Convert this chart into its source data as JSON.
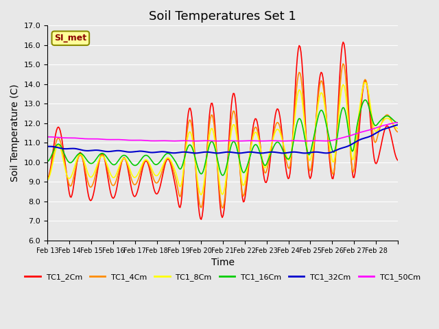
{
  "title": "Soil Temperatures Set 1",
  "xlabel": "Time",
  "ylabel": "Soil Temperature (C)",
  "ylim": [
    6.0,
    17.0
  ],
  "yticks": [
    6.0,
    7.0,
    8.0,
    9.0,
    10.0,
    11.0,
    12.0,
    13.0,
    14.0,
    15.0,
    16.0,
    17.0
  ],
  "bg_color": "#e8e8e8",
  "plot_bg_color": "#e8e8e8",
  "legend_label": "SI_met",
  "series_colors": {
    "TC1_2Cm": "#ff0000",
    "TC1_4Cm": "#ff8c00",
    "TC1_8Cm": "#ffff00",
    "TC1_16Cm": "#00cc00",
    "TC1_32Cm": "#0000cc",
    "TC1_50Cm": "#ff00ff"
  },
  "xtick_labels": [
    "Feb 13",
    "Feb 14",
    "Feb 15",
    "Feb 16",
    "Feb 17",
    "Feb 18",
    "Feb 19",
    "Feb 20",
    "Feb 21",
    "Feb 22",
    "Feb 23",
    "Feb 24",
    "Feb 25",
    "Feb 26",
    "Feb 27",
    "Feb 28"
  ],
  "n_days": 16,
  "pts_per_day": 24
}
